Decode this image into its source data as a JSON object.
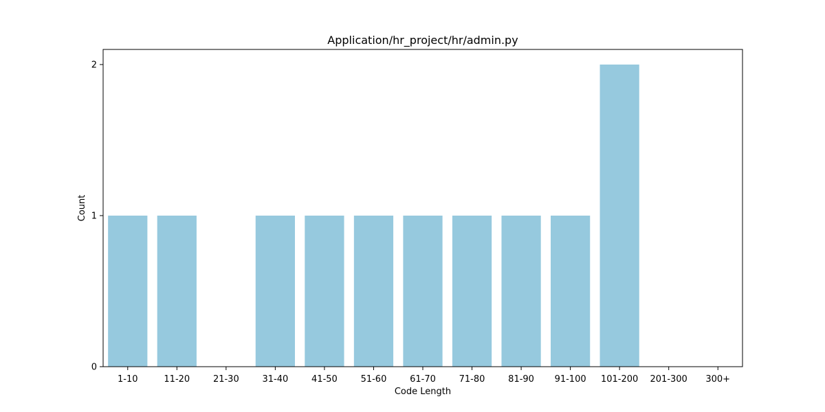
{
  "chart_data": {
    "type": "bar",
    "title": "Application/hr_project/hr/admin.py",
    "xlabel": "Code Length",
    "ylabel": "Count",
    "categories": [
      "1-10",
      "11-20",
      "21-30",
      "31-40",
      "41-50",
      "51-60",
      "61-70",
      "71-80",
      "81-90",
      "91-100",
      "101-200",
      "201-300",
      "300+"
    ],
    "values": [
      1,
      1,
      0,
      1,
      1,
      1,
      1,
      1,
      1,
      1,
      2,
      0,
      0
    ],
    "ylim": [
      0,
      2.1
    ],
    "yticks": [
      0,
      1,
      2
    ],
    "grid": false,
    "legend": "none",
    "bar_color": "#96c9de"
  }
}
